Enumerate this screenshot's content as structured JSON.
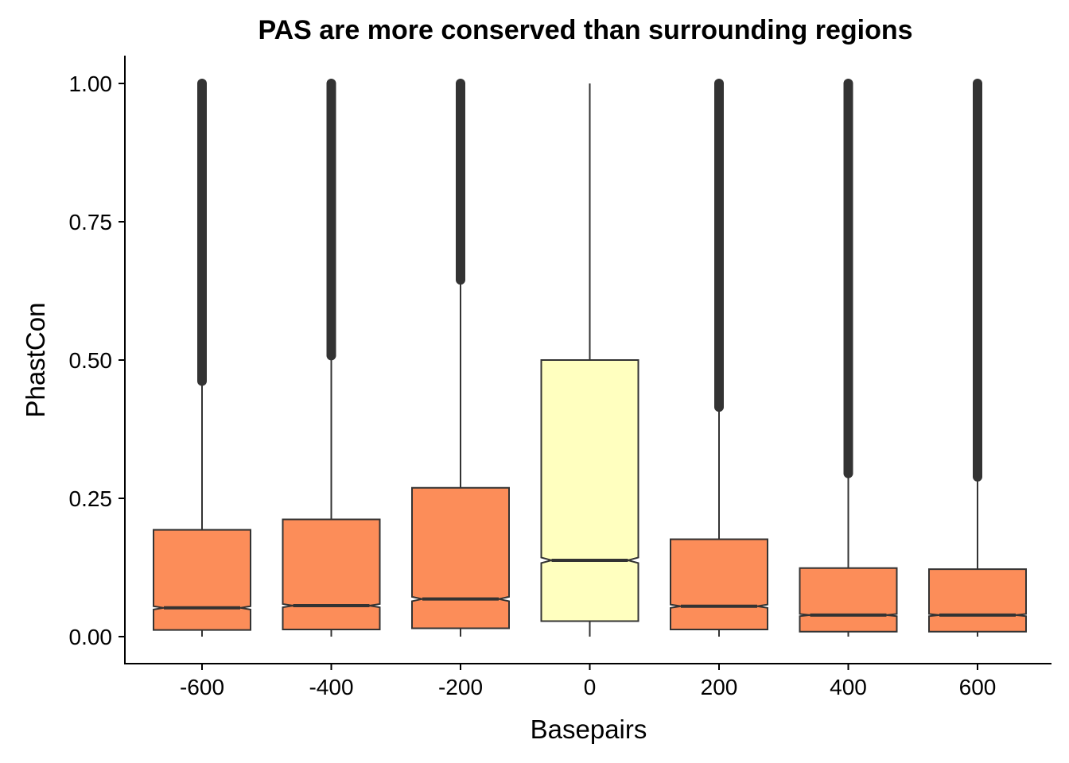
{
  "chart_data": {
    "type": "boxplot",
    "title": "PAS are more conserved than surrounding regions",
    "xlabel": "Basepairs",
    "ylabel": "PhastCon",
    "ylim": [
      -0.05,
      1.05
    ],
    "y_ticks": [
      "0.00",
      "0.25",
      "0.50",
      "0.75",
      "1.00"
    ],
    "x_ticks": [
      "-600",
      "-400",
      "-200",
      "0",
      "200",
      "400",
      "600"
    ],
    "grid": false,
    "notched": true,
    "colors": {
      "box_default": "#FC8D59",
      "box_highlight": "#FFFFBF",
      "outline": "#333333",
      "outliers": "#333333"
    },
    "boxes": [
      {
        "category": "-600",
        "lower_whisker": 0.0,
        "q1": 0.012,
        "median": 0.052,
        "q3": 0.193,
        "upper_whisker": 0.462,
        "outlier_range": [
          0.462,
          1.0
        ],
        "notch": [
          0.049,
          0.055
        ],
        "highlight": false
      },
      {
        "category": "-400",
        "lower_whisker": 0.0,
        "q1": 0.013,
        "median": 0.056,
        "q3": 0.212,
        "upper_whisker": 0.508,
        "outlier_range": [
          0.508,
          1.0
        ],
        "notch": [
          0.053,
          0.059
        ],
        "highlight": false
      },
      {
        "category": "-200",
        "lower_whisker": 0.0,
        "q1": 0.015,
        "median": 0.068,
        "q3": 0.269,
        "upper_whisker": 0.645,
        "outlier_range": [
          0.645,
          1.0
        ],
        "notch": [
          0.064,
          0.072
        ],
        "highlight": false
      },
      {
        "category": "0",
        "lower_whisker": 0.0,
        "q1": 0.028,
        "median": 0.138,
        "q3": 0.5,
        "upper_whisker": 1.0,
        "outlier_range": null,
        "notch": [
          0.133,
          0.143
        ],
        "highlight": true
      },
      {
        "category": "200",
        "lower_whisker": 0.0,
        "q1": 0.013,
        "median": 0.055,
        "q3": 0.176,
        "upper_whisker": 0.415,
        "outlier_range": [
          0.415,
          1.0
        ],
        "notch": [
          0.052,
          0.058
        ],
        "highlight": false
      },
      {
        "category": "400",
        "lower_whisker": 0.0,
        "q1": 0.009,
        "median": 0.039,
        "q3": 0.124,
        "upper_whisker": 0.295,
        "outlier_range": [
          0.295,
          1.0
        ],
        "notch": [
          0.037,
          0.041
        ],
        "highlight": false
      },
      {
        "category": "600",
        "lower_whisker": 0.0,
        "q1": 0.009,
        "median": 0.039,
        "q3": 0.122,
        "upper_whisker": 0.289,
        "outlier_range": [
          0.289,
          1.0
        ],
        "notch": [
          0.037,
          0.041
        ],
        "highlight": false
      }
    ]
  }
}
